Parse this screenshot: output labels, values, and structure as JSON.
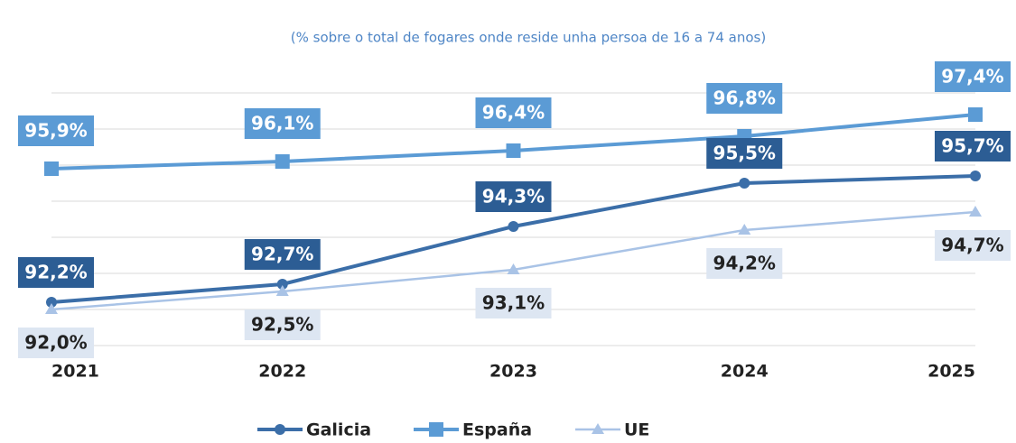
{
  "chart_data": {
    "type": "line",
    "subtitle": "(% sobre o total de fogares onde reside unha persoa de 16 a 74 anos)",
    "categories": [
      "2021",
      "2022",
      "2023",
      "2024",
      "2025"
    ],
    "series": [
      {
        "name": "Galicia",
        "color": "#3b6ea8",
        "label_color": "#2c5d94",
        "values": [
          92.2,
          92.7,
          94.3,
          95.5,
          95.7
        ],
        "value_labels": [
          "92,2%",
          "92,7%",
          "94,3%",
          "95,5%",
          "95,7%"
        ]
      },
      {
        "name": "España",
        "color": "#5b9bd5",
        "label_color": "#5b9bd5",
        "values": [
          95.9,
          96.1,
          96.4,
          96.8,
          97.4
        ],
        "value_labels": [
          "95,9%",
          "96,1%",
          "96,4%",
          "96,8%",
          "97,4%"
        ]
      },
      {
        "name": "UE",
        "color": "#a9c3e6",
        "label_color": "#dde6f2",
        "values": [
          92.0,
          92.5,
          93.1,
          94.2,
          94.7
        ],
        "value_labels": [
          "92,0%",
          "92,5%",
          "93,1%",
          "94,2%",
          "94,7%"
        ]
      }
    ],
    "ylim": [
      91,
      98
    ],
    "yticks": [
      91,
      92,
      93,
      94,
      95,
      96,
      97,
      98
    ],
    "grid": true,
    "legend": "bottom"
  }
}
